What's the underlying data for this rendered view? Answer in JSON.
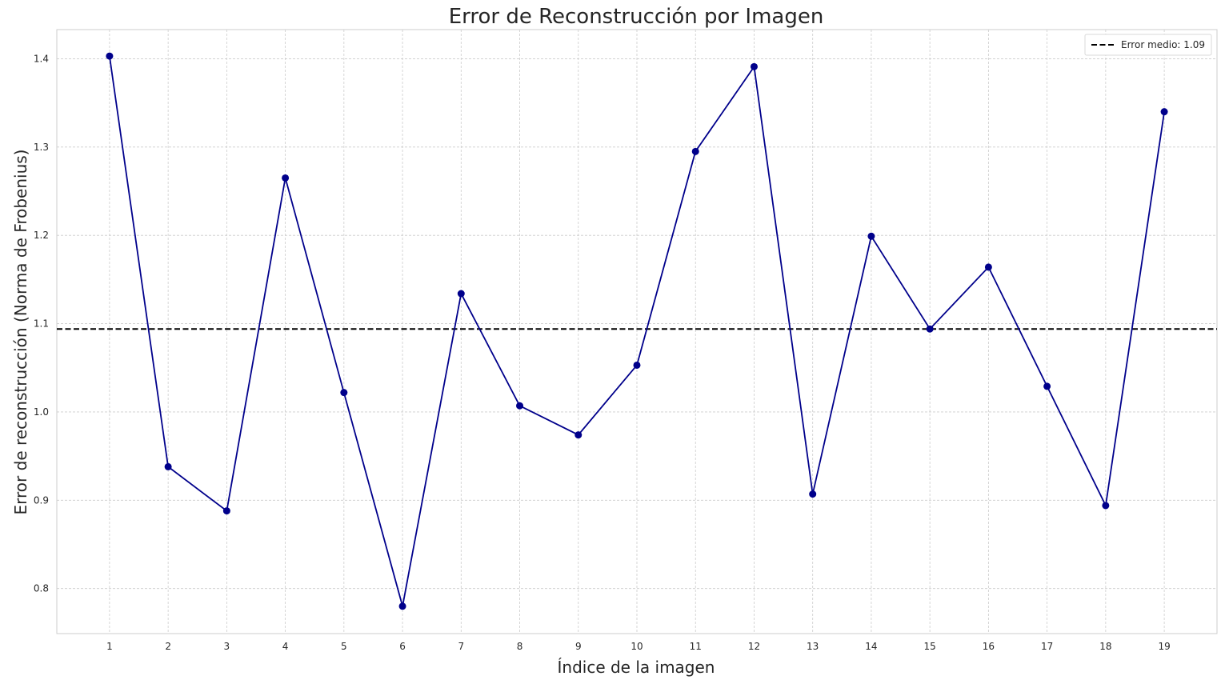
{
  "chart_data": {
    "type": "line",
    "title": "Error de Reconstrucción por Imagen",
    "xlabel": "Índice de la imagen",
    "ylabel": "Error de reconstrucción (Norma de Frobenius)",
    "x": [
      1,
      2,
      3,
      4,
      5,
      6,
      7,
      8,
      9,
      10,
      11,
      12,
      13,
      14,
      15,
      16,
      17,
      18,
      19
    ],
    "series": [
      {
        "values": [
          1.403,
          0.938,
          0.888,
          1.265,
          1.022,
          0.78,
          1.134,
          1.007,
          0.974,
          1.053,
          1.295,
          1.391,
          0.907,
          1.199,
          1.094,
          1.164,
          1.029,
          0.894,
          1.34
        ],
        "color": "#00008b",
        "marker": "circle"
      }
    ],
    "reference_line": {
      "label": "Error medio: 1.09",
      "value": 1.094,
      "style": "dashed",
      "color": "#000000"
    },
    "xticks": [
      "1",
      "2",
      "3",
      "4",
      "5",
      "6",
      "7",
      "8",
      "9",
      "10",
      "11",
      "12",
      "13",
      "14",
      "15",
      "16",
      "17",
      "18",
      "19"
    ],
    "yticks": [
      "0.8",
      "0.9",
      "1.0",
      "1.1",
      "1.2",
      "1.3",
      "1.4"
    ],
    "ytick_values": [
      0.8,
      0.9,
      1.0,
      1.1,
      1.2,
      1.3,
      1.4
    ],
    "xlim": [
      0.1,
      19.9
    ],
    "ylim": [
      0.749,
      1.433
    ],
    "grid": true,
    "legend_position": "top-right"
  }
}
